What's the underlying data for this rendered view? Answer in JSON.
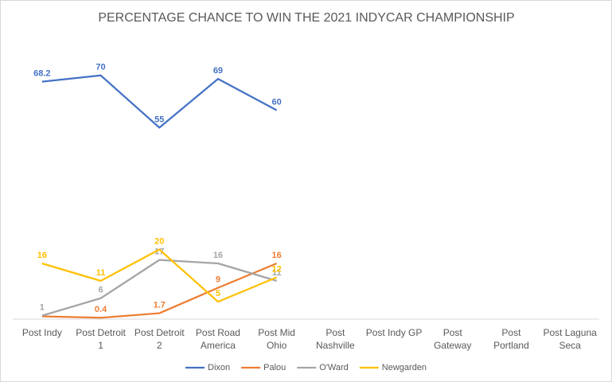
{
  "chart_data": {
    "type": "line",
    "title": "PERCENTAGE CHANCE TO WIN THE 2021 INDYCAR CHAMPIONSHIP",
    "categories": [
      "Post Indy",
      "Post Detroit 1",
      "Post Detroit 2",
      "Post Road America",
      "Post Mid Ohio",
      "Post Nashville",
      "Post Indy GP",
      "Post Gateway",
      "Post Portland",
      "Post Laguna Seca"
    ],
    "series": [
      {
        "name": "Dixon",
        "color": "#4472c4",
        "values": [
          68.2,
          70,
          55,
          69,
          60,
          null,
          null,
          null,
          null,
          null
        ]
      },
      {
        "name": "Palou",
        "color": "#ed7d31",
        "values": [
          0.8,
          0.4,
          1.7,
          9,
          16,
          null,
          null,
          null,
          null,
          null
        ],
        "value_labels": [
          null,
          "0.4",
          "1.7",
          "9",
          "16",
          null,
          null,
          null,
          null,
          null
        ]
      },
      {
        "name": "O'Ward",
        "color": "#a5a5a5",
        "values": [
          1,
          6,
          17,
          16,
          11,
          null,
          null,
          null,
          null,
          null
        ]
      },
      {
        "name": "Newgarden",
        "color": "#ffc000",
        "values": [
          16,
          11,
          20,
          5,
          12,
          null,
          null,
          null,
          null,
          null
        ]
      }
    ],
    "ylim": [
      0,
      80
    ],
    "grid": false,
    "legend": "bottom"
  }
}
